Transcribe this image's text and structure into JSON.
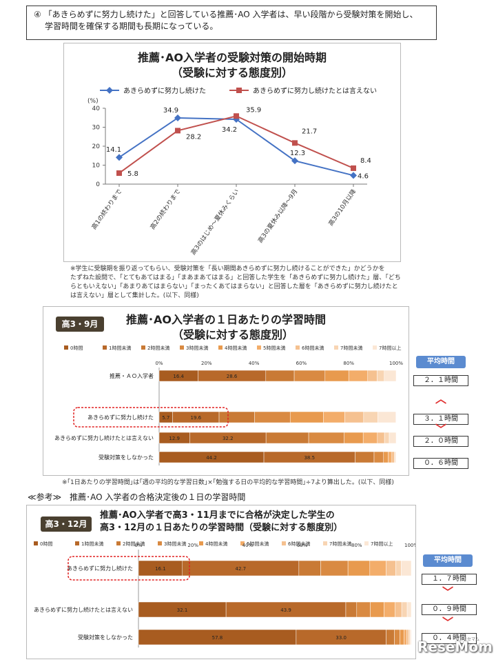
{
  "note": {
    "marker": "④",
    "text_line1": "「あきらめずに努力し続けた」と回答している推薦･AO 入学者は、早い段階から受験対策を開始し、",
    "text_line2": "学習時間を確保する期間も長期になっている。"
  },
  "chart_data": [
    {
      "type": "line",
      "title": "推薦･AO入学者の受験対策の開始時期",
      "subtitle": "（受験に対する態度別）",
      "yunit": "(%)",
      "ylim": [
        0,
        40
      ],
      "yticks": [
        0,
        10,
        20,
        30,
        40
      ],
      "categories": [
        "高1の終わりまで",
        "高2の終わりまで",
        "高3のはじめ～夏休みくらい",
        "高3の夏休み以降～9月",
        "高3の10月以降"
      ],
      "series": [
        {
          "name": "あきらめずに努力し続けた",
          "color": "#4472c4",
          "marker": "diamond",
          "values": [
            14.1,
            34.9,
            34.2,
            12.3,
            4.6
          ]
        },
        {
          "name": "あきらめずに努力し続けたとは言えない",
          "color": "#c0504d",
          "marker": "square",
          "values": [
            5.8,
            28.2,
            35.9,
            21.7,
            8.4
          ]
        }
      ],
      "legend": "top",
      "grid": false
    },
    {
      "type": "stacked-bar",
      "title": "推薦･AO入学者の１日あたりの学習時間",
      "subtitle": "（受験に対する態度別）",
      "badge": "高3・9月",
      "xlim": [
        0,
        100
      ],
      "xticks": [
        "0%",
        "20%",
        "40%",
        "60%",
        "80%",
        "100%"
      ],
      "legend": [
        "0時間",
        "1時間未満",
        "2時間未満",
        "3時間未満",
        "4時間未満",
        "5時間未満",
        "6時間未満",
        "7時間未満",
        "7時間以上"
      ],
      "colors": [
        "#a85c20",
        "#b8692a",
        "#c97a35",
        "#d98a42",
        "#e89a4e",
        "#f3ad6a",
        "#f5c190",
        "#f8d5b3",
        "#fbe7d5"
      ],
      "categories": [
        "推薦・ＡＯ入学者",
        "あきらめずに努力し続けた",
        "あきらめずに努力し続けたとは言えない",
        "受験対策をしなかった"
      ],
      "series_values": [
        [
          16.4,
          28.6,
          12.0,
          13.0,
          10.0,
          8.0,
          4.0,
          3.0,
          5.0
        ],
        [
          5.7,
          19.6,
          15.0,
          15.0,
          14.0,
          9.0,
          8.0,
          6.0,
          7.6
        ],
        [
          12.9,
          32.2,
          18.0,
          15.0,
          8.0,
          6.0,
          3.0,
          2.0,
          2.9
        ],
        [
          44.2,
          38.5,
          8.0,
          4.0,
          2.0,
          1.5,
          1.0,
          0.5,
          0.3
        ]
      ],
      "labeled_segments": 2,
      "averages_header": "平均時間",
      "averages": [
        "２．１時間",
        "３．１時間",
        "２．０時間",
        "０．６時間"
      ],
      "highlight_index": 1
    },
    {
      "type": "stacked-bar",
      "title_line1": "推薦･AO入学者で高3・11月までに合格が決定した学生の",
      "title_line2": "高3・12月の１日あたりの学習時間（受験に対する態度別）",
      "badge": "高3・12月",
      "xlim": [
        0,
        100
      ],
      "xticks": [
        "0%",
        "20%",
        "40%",
        "60%",
        "80%",
        "100%"
      ],
      "legend": [
        "0時間",
        "1時間未満",
        "2時間未満",
        "3時間未満",
        "4時間未満",
        "5時間未満",
        "6時間未満",
        "7時間未満",
        "7時間以上"
      ],
      "colors": [
        "#a85c20",
        "#b8692a",
        "#c97a35",
        "#d98a42",
        "#e89a4e",
        "#f3ad6a",
        "#f5c190",
        "#f8d5b3",
        "#fbe7d5"
      ],
      "categories": [
        "あきらめずに努力し続けた",
        "あきらめずに努力し続けたとは言えない",
        "受験対策をしなかった"
      ],
      "series_values": [
        [
          16.1,
          42.7,
          8.0,
          10.0,
          8.0,
          6.0,
          3.5,
          2.0,
          3.7
        ],
        [
          32.1,
          43.9,
          4.0,
          5.0,
          5.0,
          4.0,
          2.5,
          2.0,
          1.5
        ],
        [
          57.8,
          33.0,
          3.0,
          2.0,
          1.5,
          1.0,
          0.8,
          0.5,
          0.4
        ]
      ],
      "labeled_segments": 2,
      "averages_header": "平均時間",
      "averages": [
        "１．７時間",
        "０．９時間",
        "０．４時間"
      ],
      "highlight_index": 0
    }
  ],
  "footnote1": [
    "※学生に受験期を振り返ってもらい、受験対策を「長い期間あきらめずに努力し続けることができた」かどうかを",
    "たずねた設問で、「とてもあてはまる」「まあまあてはまる」と回答した学生を「あきらめずに努力し続けた」層、「どち",
    "らともいえない」「あまりあてはまらない」「まったくあてはまらない」と回答した層を「あきらめずに努力し続けたと",
    "は言えない」層として集計した。(以下、同様)"
  ],
  "footnote2": "※｢1日あたりの学習時間｣は｢週の平均的な学習日数｣×｢勉強する日の平均的な学習時間｣÷7より算出した。(以下、同様)",
  "reference": "≪参考≫　推薦･AO 入学者の合格決定後の１日の学習時間",
  "logo": {
    "main": "ReseMom",
    "sub": "リセマム"
  },
  "chevron_up": "︿",
  "chevron_down": "﹀"
}
